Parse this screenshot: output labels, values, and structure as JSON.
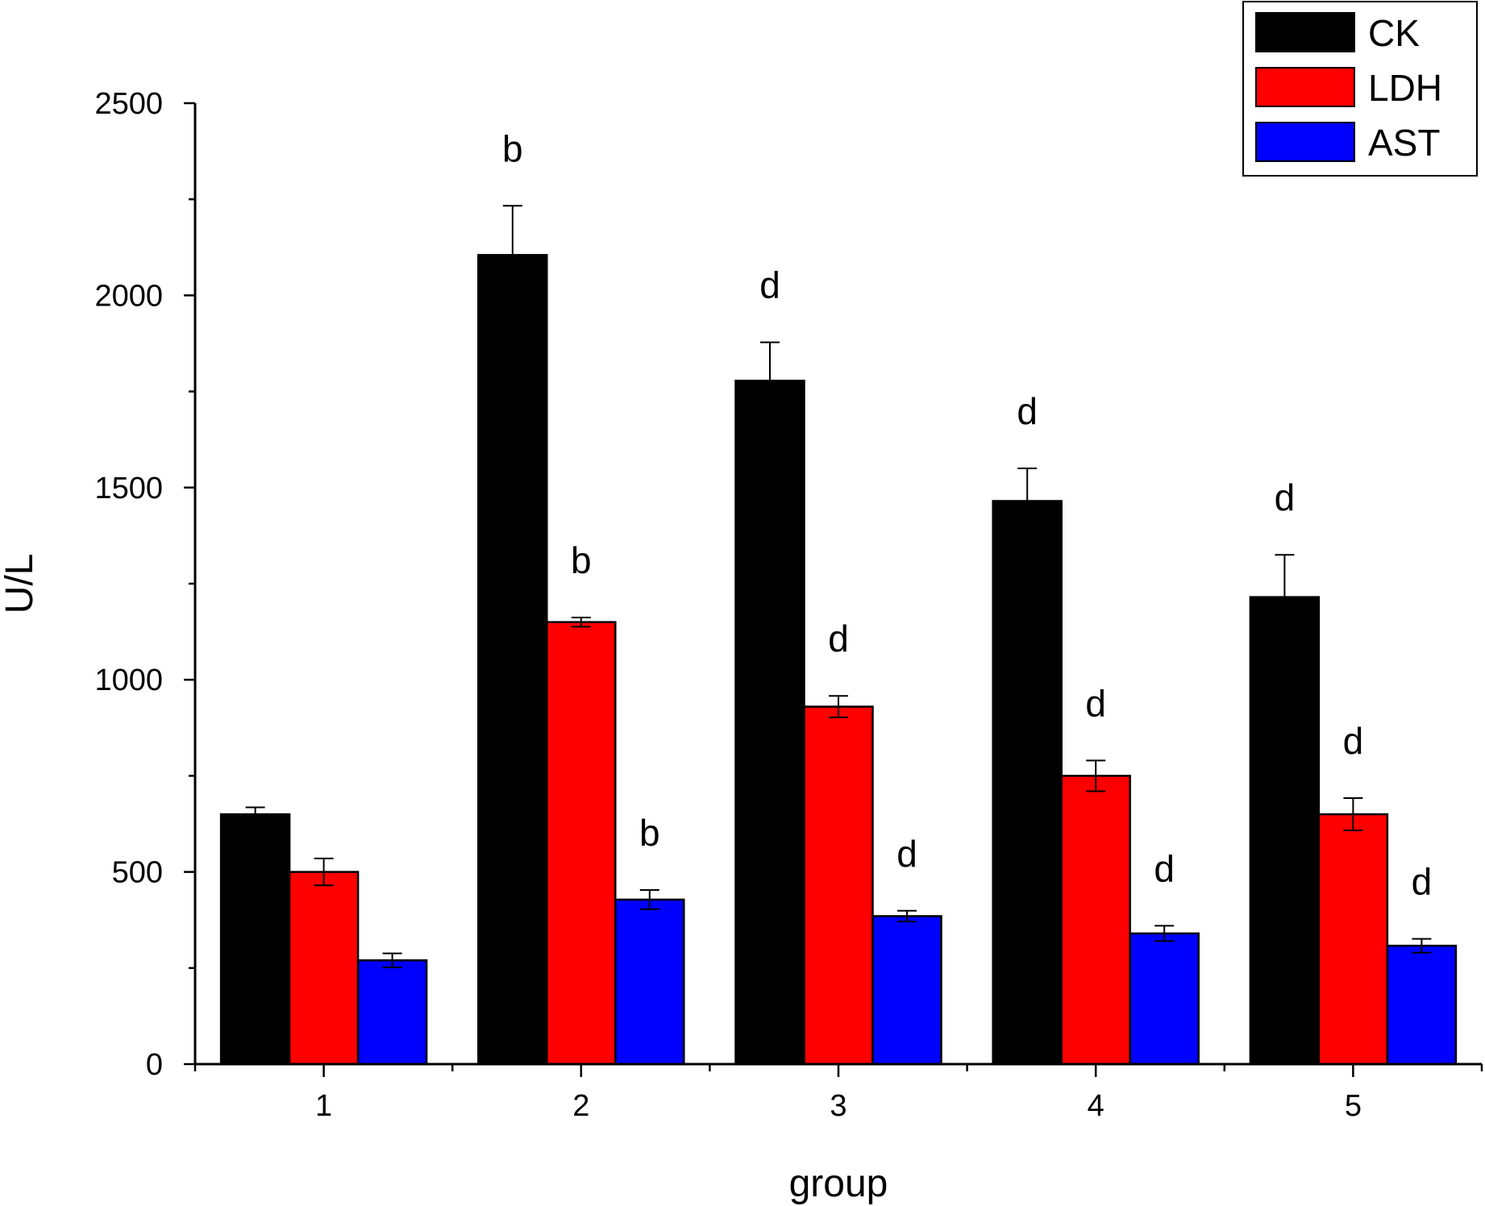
{
  "chart_data": {
    "type": "bar",
    "title": "",
    "xlabel": "group",
    "ylabel": "U/L",
    "ylim": [
      0,
      2500
    ],
    "yticks": [
      0,
      500,
      1000,
      1500,
      2000,
      2500
    ],
    "y_minor_step": 250,
    "categories": [
      "1",
      "2",
      "3",
      "4",
      "5"
    ],
    "legend_position": "top-right",
    "series": [
      {
        "name": "CK",
        "color": "#000000",
        "values": [
          650,
          2105,
          1778,
          1465,
          1215
        ],
        "errors": [
          18,
          128,
          100,
          85,
          110
        ],
        "labels": [
          "",
          "b",
          "d",
          "d",
          "d"
        ]
      },
      {
        "name": "LDH",
        "color": "#ff0000",
        "values": [
          500,
          1150,
          930,
          750,
          650
        ],
        "errors": [
          35,
          12,
          28,
          40,
          42
        ],
        "labels": [
          "",
          "b",
          "d",
          "d",
          "d"
        ]
      },
      {
        "name": "AST",
        "color": "#0000ff",
        "values": [
          270,
          428,
          385,
          340,
          308
        ],
        "errors": [
          18,
          25,
          14,
          20,
          18
        ],
        "labels": [
          "",
          "b",
          "d",
          "d",
          "d"
        ]
      }
    ]
  }
}
